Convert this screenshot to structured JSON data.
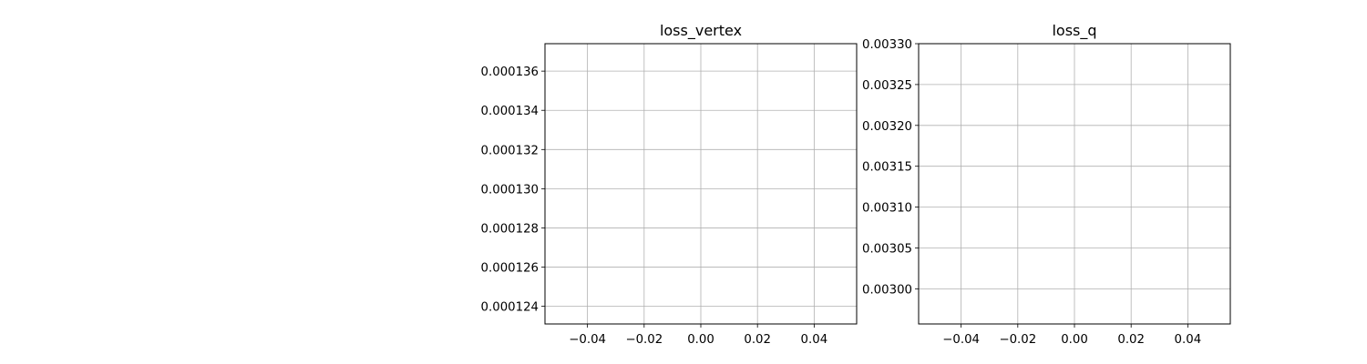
{
  "chart_data": [
    {
      "type": "line",
      "title": "loss_vertex",
      "xlabel": "",
      "ylabel": "",
      "series": [],
      "xlim": [
        -0.055,
        0.055
      ],
      "ylim": [
        0.0001231,
        0.0001374
      ],
      "xticks": [
        -0.04,
        -0.02,
        0.0,
        0.02,
        0.04
      ],
      "xtick_labels": [
        "−0.04",
        "−0.02",
        "0.00",
        "0.02",
        "0.04"
      ],
      "yticks": [
        0.000124,
        0.000126,
        0.000128,
        0.00013,
        0.000132,
        0.000134,
        0.000136
      ],
      "ytick_labels": [
        "0.000124",
        "0.000126",
        "0.000128",
        "0.000130",
        "0.000132",
        "0.000134",
        "0.000136"
      ],
      "grid": true
    },
    {
      "type": "line",
      "title": "loss_q",
      "xlabel": "",
      "ylabel": "",
      "series": [],
      "xlim": [
        -0.055,
        0.055
      ],
      "ylim": [
        0.002957,
        0.0033
      ],
      "xticks": [
        -0.04,
        -0.02,
        0.0,
        0.02,
        0.04
      ],
      "xtick_labels": [
        "−0.04",
        "−0.02",
        "0.00",
        "0.02",
        "0.04"
      ],
      "yticks": [
        0.003,
        0.00305,
        0.0031,
        0.00315,
        0.0032,
        0.00325,
        0.0033
      ],
      "ytick_labels": [
        "0.00300",
        "0.00305",
        "0.00310",
        "0.00315",
        "0.00320",
        "0.00325",
        "0.00330"
      ],
      "grid": true
    }
  ]
}
